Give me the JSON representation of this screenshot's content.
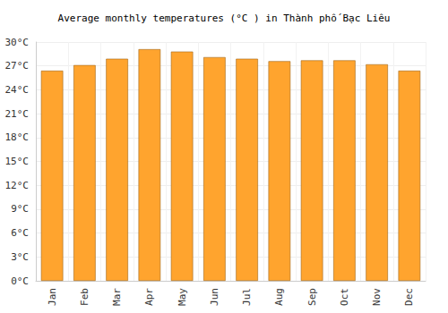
{
  "chart_data": {
    "type": "bar",
    "title": "Average monthly temperatures (°C ) in Thành phố Bạc Liêu",
    "categories": [
      "Jan",
      "Feb",
      "Mar",
      "Apr",
      "May",
      "Jun",
      "Jul",
      "Aug",
      "Sep",
      "Oct",
      "Nov",
      "Dec"
    ],
    "values": [
      26.4,
      27.1,
      27.9,
      29.1,
      28.8,
      28.1,
      27.9,
      27.6,
      27.7,
      27.7,
      27.2,
      26.4
    ],
    "color": "#ffa42e",
    "ylim": [
      0,
      30
    ],
    "yticks": [
      {
        "value": 0,
        "label": "0°C"
      },
      {
        "value": 3,
        "label": "3°C"
      },
      {
        "value": 6,
        "label": "6°C"
      },
      {
        "value": 9,
        "label": "9°C"
      },
      {
        "value": 12,
        "label": "12°C"
      },
      {
        "value": 15,
        "label": "15°C"
      },
      {
        "value": 18,
        "label": "18°C"
      },
      {
        "value": 21,
        "label": "21°C"
      },
      {
        "value": 24,
        "label": "24°C"
      },
      {
        "value": 27,
        "label": "27°C"
      },
      {
        "value": 30,
        "label": "30°C"
      }
    ],
    "grid": true
  }
}
